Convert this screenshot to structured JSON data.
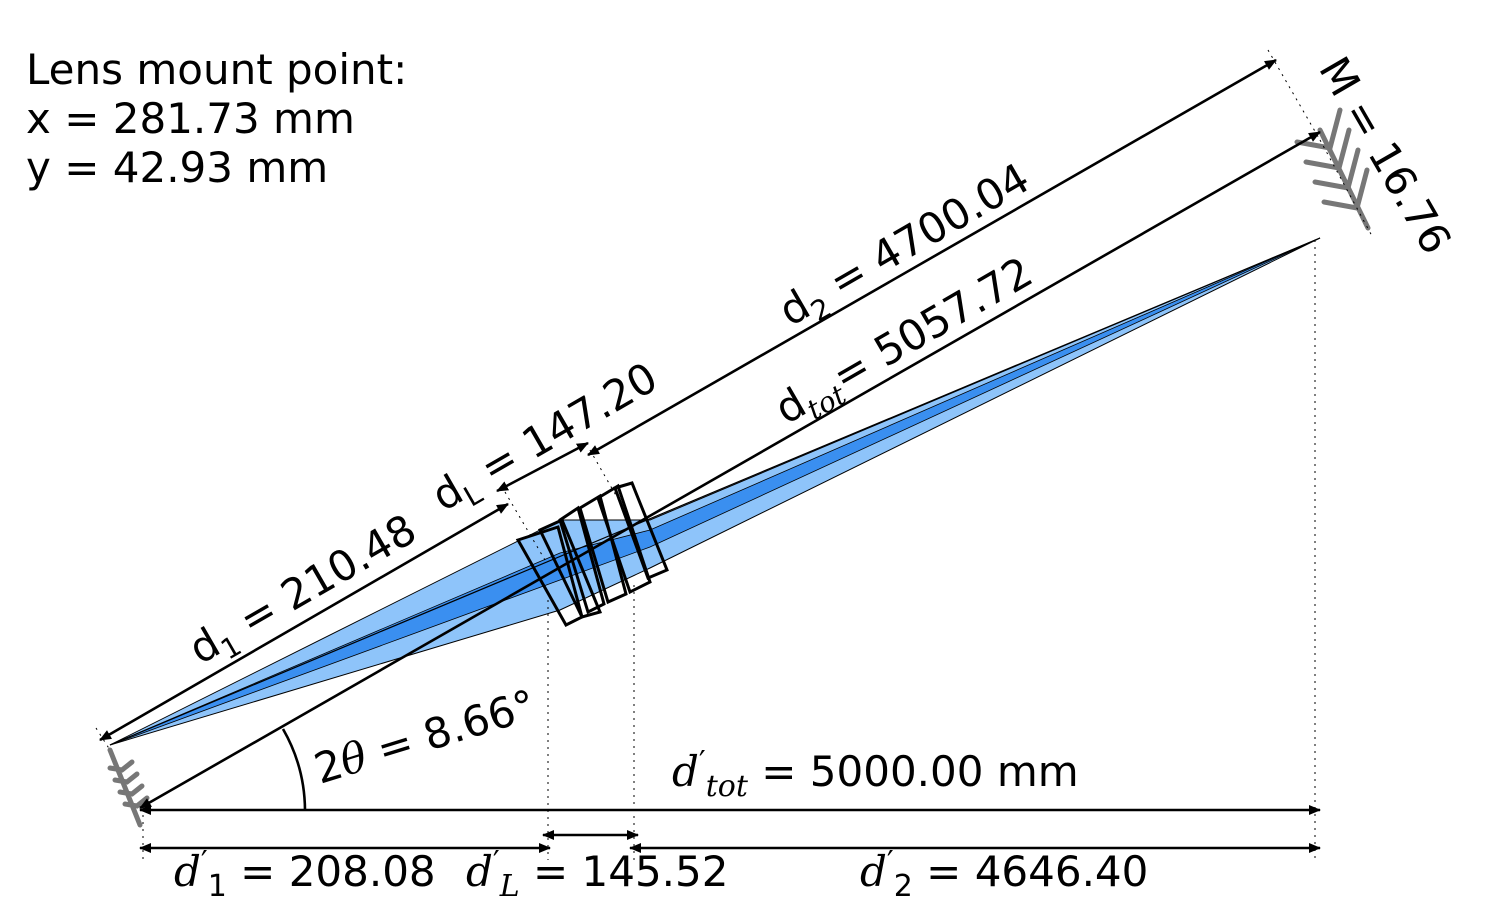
{
  "mount": {
    "title": "Lens mount point:",
    "x_line": "x = 281.73 mm",
    "y_line": "y = 42.93 mm"
  },
  "slanted": {
    "d1": {
      "sym": "d",
      "sub": "1",
      "value": " = 210.48"
    },
    "dL": {
      "sym": "d",
      "sub": "L",
      "value": " = 147.20"
    },
    "d2": {
      "sym": "d",
      "sub": "2",
      "value": " = 4700.04"
    },
    "dtot": {
      "sym": "d",
      "sub": "tot",
      "value": "= 5057.72"
    }
  },
  "angle": {
    "prefix": "2",
    "theta": "θ",
    "value": " = 8.66°"
  },
  "magnification": "M = 16.76",
  "horizontal": {
    "dtot": {
      "sym": "d",
      "prime": "′",
      "sub": "tot",
      "value": " = 5000.00 mm"
    },
    "d1": {
      "sym": "d",
      "prime": "′",
      "sub": "1",
      "value": " = 208.08"
    },
    "dL": {
      "sym": "d",
      "prime": "′",
      "sub": "L",
      "value": " = 145.52"
    },
    "d2": {
      "sym": "d",
      "prime": "′",
      "sub": "2",
      "value": " = 4646.40"
    }
  },
  "colors": {
    "beam_outer": "#8ec4fa",
    "beam_inner": "#3a8ff0",
    "object_arrow": "#777777",
    "lines": "#000000"
  }
}
